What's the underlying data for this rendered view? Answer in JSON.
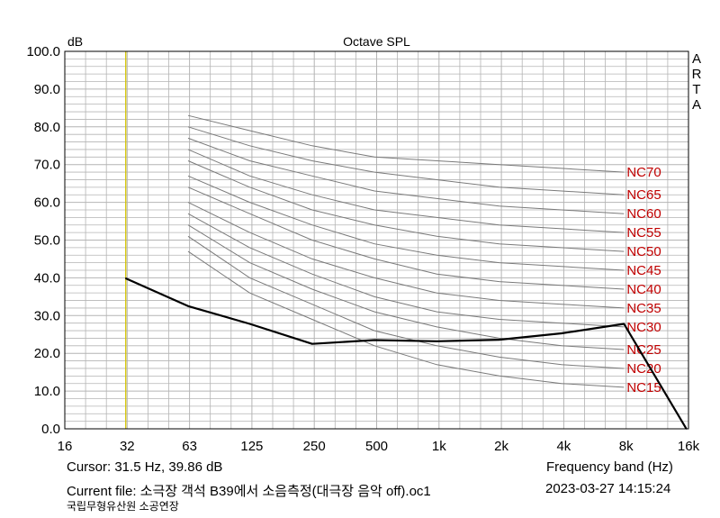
{
  "chart_data": {
    "type": "line",
    "title": "Octave SPL",
    "ylabel": "dB",
    "xlabel": "",
    "scale_x": "log2 (octave bands)",
    "ylim": [
      0,
      100
    ],
    "grid": true,
    "x_ticks": [
      "16",
      "32",
      "63",
      "125",
      "250",
      "500",
      "1k",
      "2k",
      "4k",
      "8k",
      "16k"
    ],
    "y_ticks": [
      "0.0",
      "10.0",
      "20.0",
      "30.0",
      "40.0",
      "50.0",
      "60.0",
      "70.0",
      "80.0",
      "90.0",
      "100.0"
    ],
    "cursor_freq_hz": 31.5,
    "nc_x": [
      63,
      125,
      250,
      500,
      1000,
      2000,
      4000,
      8000
    ],
    "nc_curves": [
      {
        "name": "NC70",
        "values": [
          83,
          79,
          75,
          72,
          71,
          70,
          69,
          68
        ]
      },
      {
        "name": "NC65",
        "values": [
          80,
          75,
          71,
          68,
          66,
          64,
          63,
          62
        ]
      },
      {
        "name": "NC60",
        "values": [
          77,
          71,
          67,
          63,
          61,
          59,
          58,
          57
        ]
      },
      {
        "name": "NC55",
        "values": [
          74,
          67,
          62,
          58,
          56,
          54,
          53,
          52
        ]
      },
      {
        "name": "NC50",
        "values": [
          71,
          64,
          58,
          54,
          51,
          49,
          48,
          47
        ]
      },
      {
        "name": "NC45",
        "values": [
          67,
          60,
          54,
          49,
          46,
          44,
          43,
          42
        ]
      },
      {
        "name": "NC40",
        "values": [
          64,
          57,
          50,
          45,
          41,
          39,
          38,
          37
        ]
      },
      {
        "name": "NC35",
        "values": [
          60,
          52,
          45,
          40,
          36,
          34,
          33,
          32
        ]
      },
      {
        "name": "NC30",
        "values": [
          57,
          48,
          41,
          35,
          31,
          29,
          28,
          27
        ]
      },
      {
        "name": "NC25",
        "values": [
          54,
          44,
          37,
          31,
          27,
          24,
          22,
          21
        ]
      },
      {
        "name": "NC20",
        "values": [
          51,
          40,
          33,
          26,
          22,
          19,
          17,
          16
        ]
      },
      {
        "name": "NC15",
        "values": [
          47,
          36,
          29,
          22,
          17,
          14,
          12,
          11
        ]
      }
    ],
    "series": [
      {
        "name": "",
        "x": [
          31.5,
          63,
          125,
          250,
          500,
          1000,
          2000,
          4000,
          8000,
          16000
        ],
        "values": [
          39.86,
          32.5,
          27.8,
          22.5,
          23.5,
          23.2,
          23.6,
          25.3,
          27.8,
          0
        ]
      }
    ]
  },
  "arta_label": [
    "A",
    "R",
    "T",
    "A"
  ],
  "footer": {
    "cursor_label": "Cursor:    31.5 Hz, 39.86 dB",
    "freq_band_label": "Frequency band (Hz)",
    "current_file": "Current file: 소극장 객석 B39에서 소음측정(대극장 음악 off).oc1",
    "datetime": "2023-03-27   14:15:24",
    "organization": "국립무형유산원 소공연장"
  },
  "colors": {
    "grid": "#b4b4b4",
    "nc_curve": "#7a7a7a",
    "nc_label": "#c00000",
    "measured": "#000000",
    "cursor": "#d4c400"
  }
}
